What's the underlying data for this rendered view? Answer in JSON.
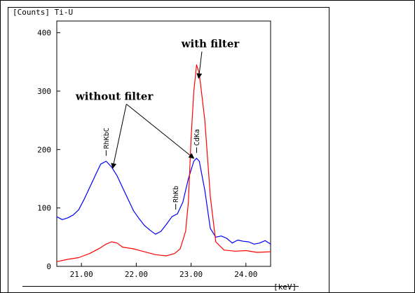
{
  "chart_data": {
    "type": "line",
    "title": "[Counts] Ti-U",
    "xlabel": "[keV]",
    "ylabel": "",
    "xlim": [
      20.55,
      24.45
    ],
    "ylim": [
      0,
      420
    ],
    "xticks": [
      "21.00",
      "22.00",
      "23.00",
      "24.00"
    ],
    "xtick_values": [
      21.0,
      22.0,
      23.0,
      24.0
    ],
    "yticks": [
      "0",
      "100",
      "200",
      "300",
      "400"
    ],
    "ytick_values": [
      0,
      100,
      200,
      300,
      400
    ],
    "grid": false,
    "series": [
      {
        "name": "",
        "color": "#0000ff",
        "x": [
          20.55,
          20.65,
          20.75,
          20.85,
          20.95,
          21.05,
          21.15,
          21.25,
          21.35,
          21.45,
          21.55,
          21.65,
          21.75,
          21.85,
          21.95,
          22.05,
          22.15,
          22.25,
          22.35,
          22.45,
          22.55,
          22.65,
          22.75,
          22.85,
          22.95,
          23.05,
          23.1,
          23.15,
          23.25,
          23.35,
          23.45,
          23.55,
          23.65,
          23.75,
          23.85,
          23.95,
          24.05,
          24.15,
          24.25,
          24.35,
          24.45
        ],
        "y": [
          85,
          80,
          83,
          88,
          97,
          115,
          135,
          155,
          175,
          180,
          170,
          155,
          135,
          115,
          95,
          82,
          70,
          62,
          55,
          60,
          72,
          85,
          90,
          110,
          150,
          180,
          185,
          180,
          130,
          65,
          50,
          52,
          48,
          40,
          45,
          43,
          42,
          38,
          40,
          44,
          38
        ]
      },
      {
        "name": "",
        "color": "#ff0000",
        "x": [
          20.55,
          20.75,
          20.95,
          21.15,
          21.35,
          21.45,
          21.55,
          21.65,
          21.75,
          21.95,
          22.15,
          22.35,
          22.55,
          22.7,
          22.8,
          22.9,
          22.95,
          23.0,
          23.05,
          23.1,
          23.15,
          23.25,
          23.35,
          23.45,
          23.6,
          23.8,
          24.0,
          24.2,
          24.45
        ],
        "y": [
          8,
          12,
          15,
          22,
          32,
          38,
          42,
          40,
          33,
          30,
          25,
          20,
          18,
          22,
          30,
          60,
          110,
          220,
          300,
          345,
          330,
          250,
          120,
          42,
          28,
          26,
          27,
          24,
          25
        ]
      }
    ],
    "peak_labels": [
      {
        "label": "RhKbC",
        "x": 21.45,
        "y": 182
      },
      {
        "label": "RhKb",
        "x": 22.72,
        "y": 90
      },
      {
        "label": "CdKa",
        "x": 23.1,
        "y": 187
      }
    ],
    "annotations": [
      {
        "text": "with filter",
        "x": 23.35,
        "y": 375
      },
      {
        "text": "without filter",
        "x": 21.6,
        "y": 285
      }
    ]
  }
}
